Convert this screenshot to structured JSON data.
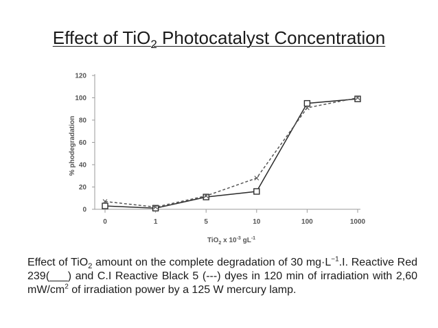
{
  "title": {
    "pre": "Effect of TiO",
    "sub": "2",
    "post": " Photocatalyst Concentration"
  },
  "chart_data": {
    "type": "line",
    "categories": [
      "0",
      "1",
      "5",
      "10",
      "100",
      "1000"
    ],
    "ylabel": "% phodegradation",
    "xlabel": {
      "pre": "TiO",
      "sub": "2",
      "mid": " x 10",
      "sup1": "-3",
      "unit": " gL",
      "sup2": "-1"
    },
    "ylim": [
      0,
      120
    ],
    "yticks": [
      "0",
      "20",
      "40",
      "60",
      "80",
      "100",
      "120"
    ],
    "grid": false,
    "series": [
      {
        "values": [
          3,
          1,
          11,
          16,
          95,
          99
        ],
        "style": "solid",
        "marker": "square",
        "color": "#2b2b2b"
      },
      {
        "values": [
          7,
          2,
          12,
          28,
          91,
          100
        ],
        "style": "dashed",
        "marker": "x",
        "color": "#555555"
      }
    ]
  },
  "caption": {
    "t1": "Effect of TiO",
    "s1": "2",
    "t2": " amount on the complete degradation of 30 mg·L",
    "p1": "−1",
    "t3": ".I. Reactive Red 239(___) and C.I Reactive Black 5 (---) dyes in 120 min of irradiation with 2,60 mW/cm",
    "p2": "2",
    "t4": " of irradiation power by a 125 W mercury lamp."
  }
}
